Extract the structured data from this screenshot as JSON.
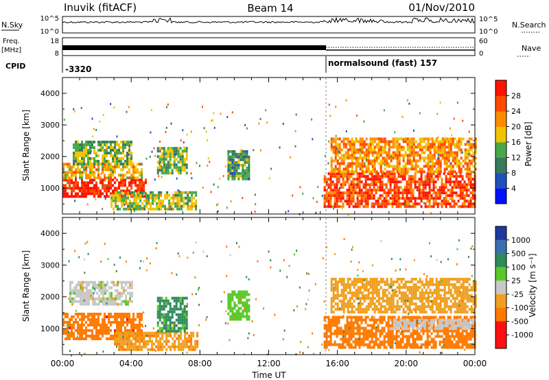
{
  "header": {
    "station": "Inuvik (fitACF)",
    "beam": "Beam 14",
    "date": "01/Nov/2010"
  },
  "strips": {
    "nsky_label": "N.Sky",
    "nsky_ticks": [
      "10^5",
      "10^0"
    ],
    "nsearch_label": "N.Search",
    "nsearch_ticks": [
      "10^5",
      "10^0"
    ],
    "freq_label": "Freq.",
    "freq_unit": "[MHz]",
    "freq_ticks": [
      "18",
      "8"
    ],
    "nave_label": "Nave",
    "nave_ticks": [
      "60",
      "0"
    ],
    "cpid_label": "CPID",
    "cpid_segments": [
      "-3320",
      "normalsound (fast) 157"
    ]
  },
  "x_ticks": [
    "00:00",
    "04:00",
    "08:00",
    "12:00",
    "16:00",
    "20:00",
    "00:00"
  ],
  "x_label": "Time UT",
  "y_label": "Slant Range [km]",
  "y_ticks": [
    "1000",
    "2000",
    "3000",
    "4000"
  ],
  "colorbars": {
    "power": {
      "label": "Power [dB]",
      "ticks": [
        "28",
        "24",
        "20",
        "16",
        "12",
        "8",
        "4"
      ]
    },
    "velocity": {
      "label": "Velocity [m s⁻¹]",
      "ticks": [
        "1000",
        "500",
        "100",
        "25",
        "-25",
        "-100",
        "-500",
        "-1000"
      ]
    }
  },
  "chart_data": [
    {
      "type": "heatmap",
      "panel": "power",
      "x_range_hours": [
        0,
        24
      ],
      "y_range_km": [
        180,
        4500
      ],
      "colorbar_range_db": [
        0,
        32
      ],
      "colors": [
        "#0010ff",
        "#2050c0",
        "#3a7a5a",
        "#48a848",
        "#f0c400",
        "#ff8c00",
        "#ff4a00",
        "#ff1200"
      ],
      "regions": [
        {
          "t": [
            0,
            4.8
          ],
          "r": [
            700,
            1300
          ],
          "v": 29
        },
        {
          "t": [
            0,
            4.6
          ],
          "r": [
            1300,
            1800
          ],
          "v": 20
        },
        {
          "t": [
            0.6,
            4
          ],
          "r": [
            1800,
            2500
          ],
          "v": 14
        },
        {
          "t": [
            2.8,
            7.8
          ],
          "r": [
            300,
            900
          ],
          "v": 16
        },
        {
          "t": [
            5.5,
            7.2
          ],
          "r": [
            1500,
            2300
          ],
          "v": 14
        },
        {
          "t": [
            9.6,
            10.8
          ],
          "r": [
            1300,
            2200
          ],
          "v": 12
        },
        {
          "t": [
            15.2,
            24
          ],
          "r": [
            400,
            1500
          ],
          "v": 27
        },
        {
          "t": [
            15.6,
            24
          ],
          "r": [
            1500,
            2600
          ],
          "v": 22
        }
      ]
    },
    {
      "type": "heatmap",
      "panel": "velocity",
      "x_range_hours": [
        0,
        24
      ],
      "y_range_km": [
        180,
        4500
      ],
      "colorbar_levels": [
        -1000,
        -500,
        -100,
        -25,
        25,
        100,
        500,
        1000
      ],
      "colors": [
        "#ff1010",
        "#ff7a00",
        "#f0a020",
        "#c8c8c8",
        "#5ac82a",
        "#2e8a5a",
        "#3a70b0",
        "#1e3a9c"
      ],
      "regions": [
        {
          "t": [
            0,
            4.6
          ],
          "r": [
            700,
            1500
          ],
          "v": -350
        },
        {
          "t": [
            0.4,
            4
          ],
          "r": [
            1800,
            2500
          ],
          "v": 0
        },
        {
          "t": [
            3,
            7.8
          ],
          "r": [
            300,
            900
          ],
          "v": -80
        },
        {
          "t": [
            5.5,
            7.2
          ],
          "r": [
            900,
            2000
          ],
          "v": 150
        },
        {
          "t": [
            9.6,
            10.8
          ],
          "r": [
            1300,
            2200
          ],
          "v": 60
        },
        {
          "t": [
            15.2,
            24
          ],
          "r": [
            400,
            1400
          ],
          "v": -200
        },
        {
          "t": [
            15.6,
            24
          ],
          "r": [
            1500,
            2600
          ],
          "v": -60
        },
        {
          "t": [
            19,
            24
          ],
          "r": [
            1000,
            1300
          ],
          "v": 10
        }
      ]
    }
  ]
}
